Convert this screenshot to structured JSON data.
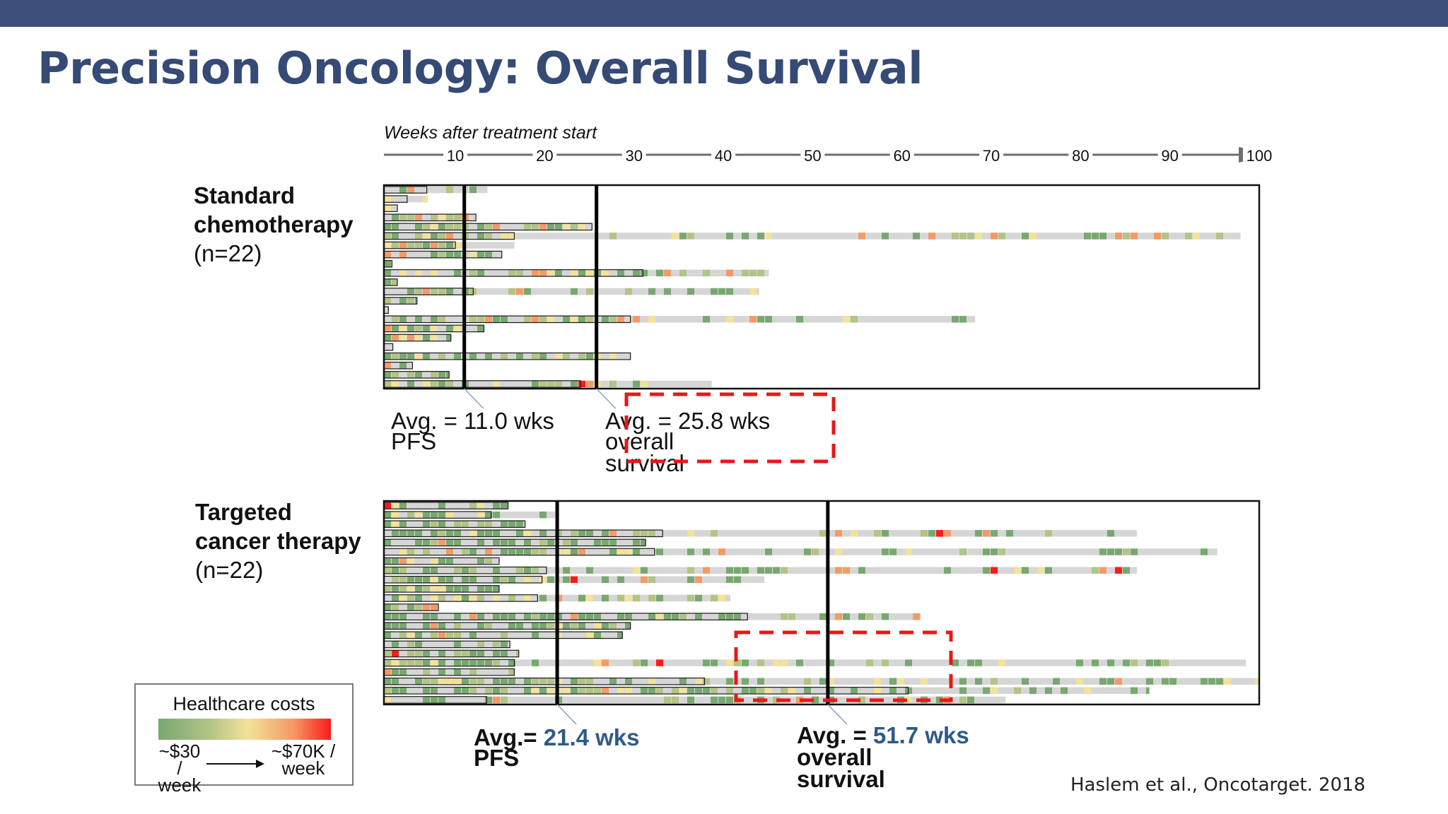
{
  "title": "Precision Oncology: Overall Survival",
  "axis": {
    "label": "Weeks after treatment start",
    "ticks": [
      10,
      20,
      30,
      40,
      50,
      60,
      70,
      80,
      90,
      100
    ],
    "range": [
      2,
      100
    ]
  },
  "colors": {
    "header_bar": "#3b4f7a",
    "title": "#354a75",
    "highlight_value": "#2e5a8a",
    "dashed_box": "#e81818",
    "bar_fill": "#d6d6d6",
    "cost_scale": [
      "#78a870",
      "#b2c486",
      "#f3e29a",
      "#f59a66",
      "#ff1a1a"
    ]
  },
  "groups": [
    {
      "id": "standard",
      "label_line1": "Standard",
      "label_line2": "chemotherapy",
      "label_line3": "(n=22)",
      "pfs_word": "PFS",
      "pfs_prefix": "Avg. = ",
      "pfs_value": "11.0 wks",
      "os_words": [
        "Avg.",
        "overall",
        "survival"
      ],
      "os_prefix": " = ",
      "os_value": "25.8 wks"
    },
    {
      "id": "targeted",
      "label_line1": "Targeted",
      "label_line2": "cancer therapy",
      "label_line3": "(n=22)",
      "pfs_word": "PFS",
      "pfs_prefix": "Avg.= ",
      "pfs_value": "21.4 wks",
      "os_words": [
        "Avg.",
        "overall",
        "survival"
      ],
      "os_prefix": " = ",
      "os_value": "51.7 wks"
    }
  ],
  "legend": {
    "title": "Healthcare costs",
    "low_label_1": "~$30 /",
    "low_label_2": "week",
    "high_label_1": "~$70K /",
    "high_label_2": "week"
  },
  "citation": "Haslem et al., Oncotarget. 2018",
  "chart_data": [
    {
      "type": "swimmer",
      "title": "Standard chemotherapy (n=22)",
      "xlabel": "Weeks after treatment start",
      "xlim": [
        2,
        100
      ],
      "avg_pfs_weeks": 11.0,
      "avg_os_weeks": 25.8,
      "patients": [
        {
          "pfs": 6.8,
          "os": 13.6
        },
        {
          "pfs": 4.6,
          "os": 6.9
        },
        {
          "pfs": 3.5,
          "os": 3.5
        },
        {
          "pfs": 12.3,
          "os": 12.3
        },
        {
          "pfs": 25.3,
          "os": 25.3
        },
        {
          "pfs": 16.6,
          "os": 97.9
        },
        {
          "pfs": 10.0,
          "os": 16.6
        },
        {
          "pfs": 15.2,
          "os": 15.2
        },
        {
          "pfs": 2.9,
          "os": 2.9
        },
        {
          "pfs": 31.0,
          "os": 45.1
        },
        {
          "pfs": 3.5,
          "os": 3.5
        },
        {
          "pfs": 12.0,
          "os": 44.0
        },
        {
          "pfs": 5.7,
          "os": 5.7
        },
        {
          "pfs": 2.5,
          "os": 2.5
        },
        {
          "pfs": 29.6,
          "os": 68.2
        },
        {
          "pfs": 13.2,
          "os": 13.2
        },
        {
          "pfs": 9.5,
          "os": 9.5
        },
        {
          "pfs": 3.0,
          "os": 3.0
        },
        {
          "pfs": 29.6,
          "os": 29.6
        },
        {
          "pfs": 5.2,
          "os": 5.2
        },
        {
          "pfs": 9.3,
          "os": 9.3
        },
        {
          "pfs": 24.0,
          "os": 38.7
        }
      ]
    },
    {
      "type": "swimmer",
      "title": "Targeted cancer therapy (n=22)",
      "xlabel": "Weeks after treatment start",
      "xlim": [
        2,
        100
      ],
      "avg_pfs_weeks": 21.4,
      "avg_os_weeks": 51.7,
      "patients": [
        {
          "pfs": 15.9,
          "os": 15.9
        },
        {
          "pfs": 14.0,
          "os": 21.2
        },
        {
          "pfs": 17.8,
          "os": 17.8
        },
        {
          "pfs": 33.2,
          "os": 86.3
        },
        {
          "pfs": 31.3,
          "os": 31.3
        },
        {
          "pfs": 32.3,
          "os": 95.3
        },
        {
          "pfs": 14.9,
          "os": 14.9
        },
        {
          "pfs": 20.2,
          "os": 86.3
        },
        {
          "pfs": 19.7,
          "os": 44.6
        },
        {
          "pfs": 14.9,
          "os": 14.9
        },
        {
          "pfs": 19.2,
          "os": 40.8
        },
        {
          "pfs": 8.1,
          "os": 8.1
        },
        {
          "pfs": 42.7,
          "os": 62.1
        },
        {
          "pfs": 29.6,
          "os": 29.6
        },
        {
          "pfs": 28.7,
          "os": 28.7
        },
        {
          "pfs": 16.1,
          "os": 16.1
        },
        {
          "pfs": 17.1,
          "os": 17.1
        },
        {
          "pfs": 16.6,
          "os": 98.5
        },
        {
          "pfs": 16.6,
          "os": 16.6
        },
        {
          "pfs": 37.9,
          "os": 100.0
        },
        {
          "pfs": 60.7,
          "os": 87.7
        },
        {
          "pfs": 13.5,
          "os": 71.6
        }
      ]
    }
  ]
}
